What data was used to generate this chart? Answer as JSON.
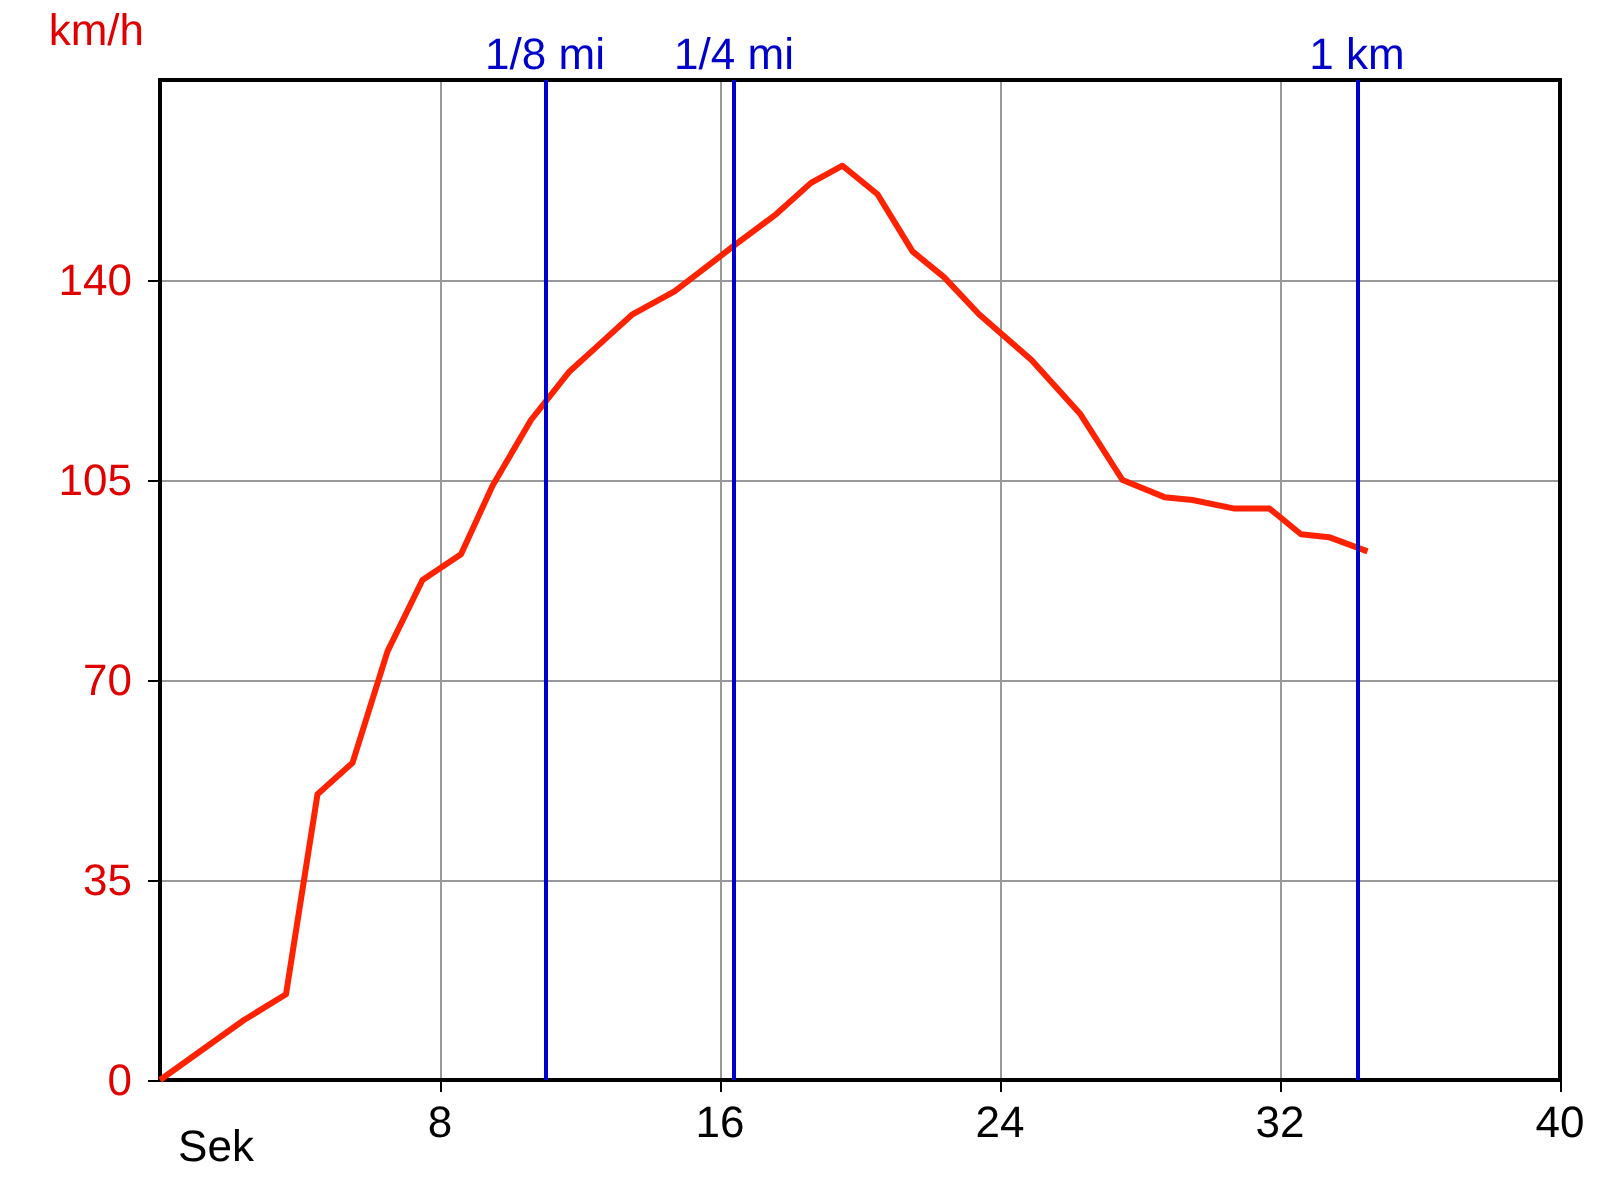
{
  "chart_data": {
    "type": "line",
    "xlabel": "Sek",
    "ylabel": "km/h",
    "x": [
      0,
      2.4,
      3.6,
      4.5,
      5.5,
      6.5,
      7.5,
      8.6,
      9.5,
      10.6,
      11.7,
      12.6,
      13.5,
      14.7,
      16.4,
      17.6,
      18.6,
      19.5,
      20.5,
      21.5,
      22.4,
      23.4,
      24.9,
      26.3,
      27.5,
      28.7,
      29.5,
      30.7,
      31.7,
      32.6,
      33.4,
      34.5
    ],
    "series": [
      {
        "color": "#ff2200",
        "values": [
          0,
          10.5,
          15,
          50,
          55.5,
          75,
          87.5,
          92,
          104,
          115.5,
          124,
          129,
          134,
          138,
          146,
          151.5,
          157,
          160,
          155,
          145,
          140.5,
          134,
          126,
          116.5,
          105,
          102,
          101.5,
          100,
          100,
          95.5,
          95,
          92.5
        ]
      }
    ],
    "xlim": [
      0,
      40
    ],
    "xticks": [
      8,
      16,
      24,
      32,
      40
    ],
    "ylim": [
      0,
      175
    ],
    "yticks": [
      0,
      35,
      70,
      105,
      140
    ],
    "grid": true,
    "marker": "none",
    "line_style": "solid",
    "ref_lines": [
      {
        "axis": "x",
        "value": 11,
        "label": "1/8 mi",
        "color": "#0000cc"
      },
      {
        "axis": "x",
        "value": 16.4,
        "label": "1/4 mi",
        "color": "#0000cc"
      },
      {
        "axis": "x",
        "value": 34.2,
        "label": "1 km",
        "color": "#0000cc"
      }
    ]
  }
}
